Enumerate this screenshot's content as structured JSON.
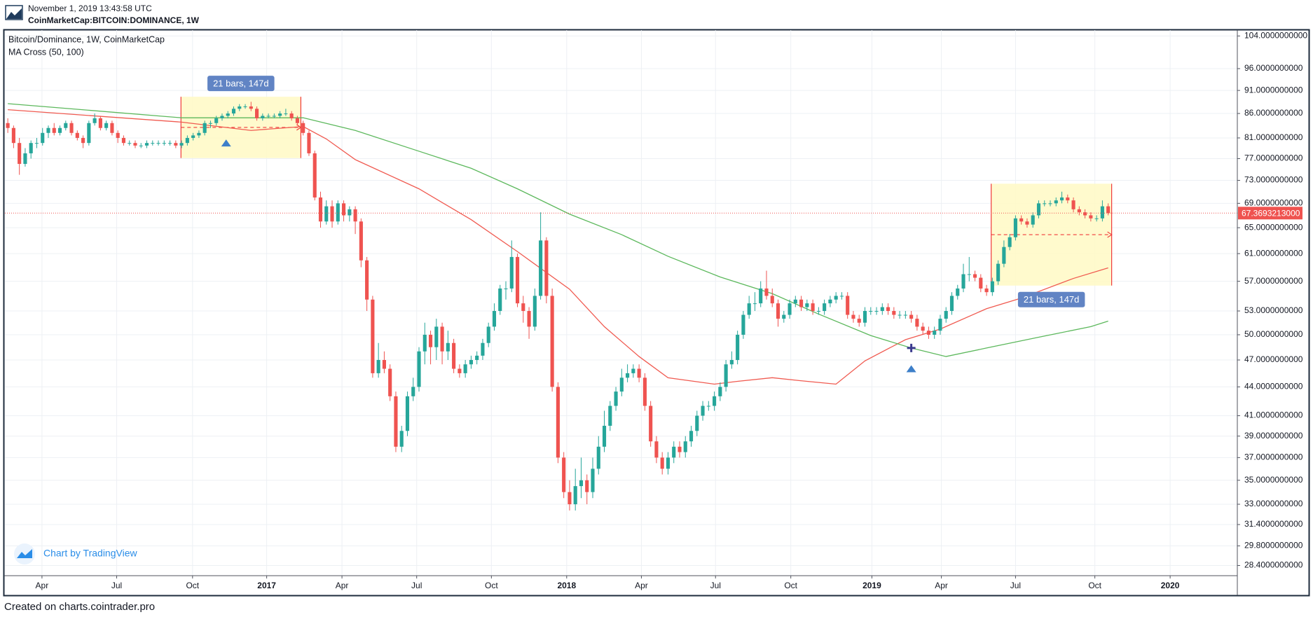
{
  "header": {
    "timestamp": "November 1, 2019 13:43:58 UTC",
    "symbol": "CoinMarketCap:BITCOIN:DOMINANCE, 1W"
  },
  "footer": "Created on charts.cointrader.pro",
  "chart_data": {
    "type": "candlestick",
    "title": "Bitcoin/Dominance, 1W, CoinMarketCap",
    "indicator": "MA Cross (50, 100)",
    "watermark": "Chart by TradingView",
    "yscale": "log",
    "grid": true,
    "up_color": "#26a69a",
    "down_color": "#ef5350",
    "xlim": [
      -0.5,
      212.3
    ],
    "ylim": [
      27.7,
      105.5
    ],
    "xticks": [
      {
        "value": 5.9,
        "label": "Apr"
      },
      {
        "value": 18.8,
        "label": "Jul"
      },
      {
        "value": 31.9,
        "label": "Oct"
      },
      {
        "value": 44.7,
        "label": "2017"
      },
      {
        "value": 57.7,
        "label": "Apr"
      },
      {
        "value": 70.6,
        "label": "Jul"
      },
      {
        "value": 83.5,
        "label": "Oct"
      },
      {
        "value": 96.5,
        "label": "2018"
      },
      {
        "value": 109.4,
        "label": "Apr"
      },
      {
        "value": 122.2,
        "label": "Jul"
      },
      {
        "value": 135.2,
        "label": "Oct"
      },
      {
        "value": 149.2,
        "label": "2019"
      },
      {
        "value": 161.2,
        "label": "Apr"
      },
      {
        "value": 174,
        "label": "Jul"
      },
      {
        "value": 187.7,
        "label": "Oct"
      },
      {
        "value": 200.7,
        "label": "2020"
      }
    ],
    "yticks": [
      {
        "value": 104,
        "label": "104.0000000000"
      },
      {
        "value": 96,
        "label": "96.0000000000"
      },
      {
        "value": 91,
        "label": "91.0000000000"
      },
      {
        "value": 86,
        "label": "86.0000000000"
      },
      {
        "value": 81,
        "label": "81.0000000000"
      },
      {
        "value": 77,
        "label": "77.0000000000"
      },
      {
        "value": 73,
        "label": "73.0000000000"
      },
      {
        "value": 69,
        "label": "69.0000000000"
      },
      {
        "value": 65,
        "label": "65.0000000000"
      },
      {
        "value": 61,
        "label": "61.0000000000"
      },
      {
        "value": 57,
        "label": "57.0000000000"
      },
      {
        "value": 53,
        "label": "53.0000000000"
      },
      {
        "value": 50,
        "label": "50.0000000000"
      },
      {
        "value": 47,
        "label": "47.0000000000"
      },
      {
        "value": 44,
        "label": "44.0000000000"
      },
      {
        "value": 41,
        "label": "41.0000000000"
      },
      {
        "value": 39,
        "label": "39.0000000000"
      },
      {
        "value": 37,
        "label": "37.0000000000"
      },
      {
        "value": 35,
        "label": "35.0000000000"
      },
      {
        "value": 33,
        "label": "33.0000000000"
      },
      {
        "value": 31.4,
        "label": "31.4000000000"
      },
      {
        "value": 29.8,
        "label": "29.8000000000"
      },
      {
        "value": 28.4,
        "label": "28.4000000000"
      }
    ],
    "ohlc": [
      [
        84,
        85,
        82,
        83
      ],
      [
        83,
        83.5,
        79,
        80
      ],
      [
        80,
        81,
        74,
        76
      ],
      [
        76,
        79,
        75.5,
        78
      ],
      [
        78,
        80.5,
        77,
        80
      ],
      [
        80,
        81,
        79,
        80
      ],
      [
        80,
        83,
        79.5,
        82
      ],
      [
        82,
        83.5,
        81,
        83
      ],
      [
        83,
        84,
        81.5,
        82
      ],
      [
        82,
        83.5,
        81.5,
        83
      ],
      [
        83,
        84.5,
        82.5,
        84
      ],
      [
        84,
        84.5,
        81.5,
        82
      ],
      [
        82,
        82.5,
        80.5,
        81
      ],
      [
        81,
        81.5,
        79,
        80
      ],
      [
        80,
        84.5,
        79.5,
        84
      ],
      [
        84,
        86,
        83.5,
        85
      ],
      [
        85,
        85.5,
        82.5,
        83
      ],
      [
        83,
        84.5,
        82.5,
        84
      ],
      [
        84,
        84.5,
        81.5,
        82
      ],
      [
        82,
        82.5,
        80,
        81
      ],
      [
        81,
        81.5,
        79.5,
        80
      ],
      [
        80,
        80.5,
        79.5,
        80
      ],
      [
        80,
        80.5,
        79,
        79.5
      ],
      [
        79.5,
        80,
        79,
        79.5
      ],
      [
        79.5,
        80.5,
        79,
        80
      ],
      [
        80,
        80.5,
        79.5,
        80
      ],
      [
        80,
        80.5,
        79.5,
        80
      ],
      [
        80,
        80.5,
        79.5,
        80
      ],
      [
        80,
        80.5,
        79.5,
        80
      ],
      [
        80,
        80.5,
        79,
        79.5
      ],
      [
        79.5,
        80.5,
        79,
        80
      ],
      [
        80,
        81.5,
        79.5,
        81
      ],
      [
        81,
        82,
        80.5,
        81.5
      ],
      [
        81.5,
        82.5,
        81,
        82
      ],
      [
        82,
        84.5,
        81.5,
        84
      ],
      [
        84,
        84.5,
        83,
        84
      ],
      [
        84,
        85.5,
        83.5,
        85
      ],
      [
        85,
        86,
        84.5,
        85.5
      ],
      [
        85.5,
        86.5,
        85,
        86
      ],
      [
        86,
        87.5,
        85.5,
        87
      ],
      [
        87,
        88,
        86.5,
        87.5
      ],
      [
        87.5,
        88,
        87,
        87.5
      ],
      [
        87.5,
        88.5,
        86.5,
        87
      ],
      [
        87,
        87.5,
        84.5,
        85
      ],
      [
        85,
        86,
        84.5,
        85.5
      ],
      [
        85.5,
        86,
        85,
        85.5
      ],
      [
        85.5,
        86,
        85,
        85.5
      ],
      [
        85.5,
        86.5,
        85,
        86
      ],
      [
        86,
        87,
        85.5,
        86
      ],
      [
        86,
        86.5,
        84.5,
        85
      ],
      [
        85,
        85.5,
        83.5,
        84
      ],
      [
        84,
        84.5,
        81.5,
        82
      ],
      [
        82,
        82.5,
        77.5,
        78
      ],
      [
        78,
        78.5,
        69.5,
        70
      ],
      [
        70,
        71,
        65,
        66
      ],
      [
        66,
        69.5,
        65.5,
        68.5
      ],
      [
        68.5,
        69.5,
        65,
        66
      ],
      [
        66,
        69.5,
        65.5,
        69
      ],
      [
        69,
        69.5,
        66,
        67
      ],
      [
        67,
        68.5,
        66,
        68
      ],
      [
        68,
        68.5,
        64,
        66
      ],
      [
        66,
        66.5,
        59,
        60
      ],
      [
        60,
        60.5,
        53,
        54.5
      ],
      [
        54.5,
        55,
        45,
        45.5
      ],
      [
        45.5,
        49,
        45,
        47
      ],
      [
        47,
        48,
        45.5,
        46
      ],
      [
        46,
        46.5,
        42.5,
        43
      ],
      [
        43,
        43.5,
        37.5,
        38
      ],
      [
        38,
        40,
        37.5,
        39.5
      ],
      [
        39.5,
        43.5,
        39,
        43
      ],
      [
        43,
        45,
        42.5,
        44
      ],
      [
        44,
        48.5,
        43.5,
        48
      ],
      [
        48,
        51.5,
        46.5,
        50
      ],
      [
        50,
        50.5,
        46.5,
        48.5
      ],
      [
        48.5,
        52,
        47,
        51
      ],
      [
        51,
        51.5,
        46.5,
        48
      ],
      [
        48,
        50.5,
        47,
        49
      ],
      [
        49,
        49.5,
        45.5,
        46
      ],
      [
        46,
        46.5,
        45,
        45.5
      ],
      [
        45.5,
        47,
        45,
        46.5
      ],
      [
        46.5,
        47.5,
        46,
        47
      ],
      [
        47,
        48,
        46.5,
        47.5
      ],
      [
        47.5,
        49.5,
        47,
        49
      ],
      [
        49,
        51.5,
        48.5,
        51
      ],
      [
        51,
        54,
        50.5,
        53
      ],
      [
        53,
        56.5,
        52.5,
        56
      ],
      [
        56,
        57,
        54.5,
        56
      ],
      [
        56,
        63,
        55.5,
        60.5
      ],
      [
        60.5,
        61,
        53.5,
        54
      ],
      [
        54,
        55,
        51.5,
        53
      ],
      [
        53,
        53.5,
        49.5,
        51
      ],
      [
        51,
        56,
        50.5,
        55
      ],
      [
        55,
        67.5,
        54.5,
        63
      ],
      [
        63,
        63.5,
        54,
        55
      ],
      [
        55,
        56,
        43.5,
        44
      ],
      [
        44,
        44.5,
        36.5,
        37
      ],
      [
        37,
        37.5,
        33.5,
        34
      ],
      [
        34,
        35,
        32.5,
        33
      ],
      [
        33,
        36,
        32.5,
        34.5
      ],
      [
        34.5,
        37,
        33.5,
        35
      ],
      [
        35,
        35.5,
        33,
        34
      ],
      [
        34,
        37,
        33.5,
        36
      ],
      [
        36,
        39,
        35.5,
        38
      ],
      [
        38,
        41.5,
        37.5,
        40
      ],
      [
        40,
        42.5,
        39.5,
        42
      ],
      [
        42,
        44,
        41.5,
        43.5
      ],
      [
        43.5,
        46,
        43,
        45
      ],
      [
        45,
        46.5,
        44.5,
        45.5
      ],
      [
        45.5,
        46.5,
        45,
        46
      ],
      [
        46,
        46.5,
        44.5,
        45
      ],
      [
        45,
        45.5,
        41.5,
        42
      ],
      [
        42,
        42.5,
        38,
        38.5
      ],
      [
        38.5,
        39,
        36.5,
        37
      ],
      [
        37,
        37.5,
        35.5,
        36
      ],
      [
        36,
        37.5,
        35.5,
        37
      ],
      [
        37,
        38.5,
        36.5,
        38
      ],
      [
        38,
        38.5,
        37,
        37.5
      ],
      [
        37.5,
        39,
        37,
        38.5
      ],
      [
        38.5,
        40,
        38,
        39.5
      ],
      [
        39.5,
        41.5,
        39,
        41
      ],
      [
        41,
        42.5,
        40.5,
        42
      ],
      [
        42,
        42.5,
        41.5,
        42
      ],
      [
        42,
        43.5,
        41.5,
        43
      ],
      [
        43,
        44.5,
        42.5,
        44
      ],
      [
        44,
        47,
        43.5,
        46.5
      ],
      [
        46.5,
        48,
        46,
        47
      ],
      [
        47,
        50.5,
        46.5,
        50
      ],
      [
        50,
        53,
        49.5,
        52.5
      ],
      [
        52.5,
        55,
        52,
        54
      ],
      [
        54,
        55.5,
        53,
        54
      ],
      [
        54,
        57,
        53.5,
        56
      ],
      [
        56,
        58.5,
        54.5,
        55
      ],
      [
        55,
        56,
        53.5,
        54
      ],
      [
        54,
        54.5,
        51,
        52
      ],
      [
        52,
        53,
        51.5,
        52.5
      ],
      [
        52.5,
        54.5,
        52,
        54
      ],
      [
        54,
        55,
        53.5,
        54.5
      ],
      [
        54.5,
        55,
        53,
        53.5
      ],
      [
        53.5,
        54.5,
        53,
        54
      ],
      [
        54,
        54.5,
        52.5,
        53
      ],
      [
        53,
        53.5,
        52.5,
        53
      ],
      [
        53,
        54.5,
        52.5,
        54
      ],
      [
        54,
        55,
        53.5,
        54.5
      ],
      [
        54.5,
        55.5,
        54,
        55
      ],
      [
        55,
        55.5,
        54.5,
        55
      ],
      [
        55,
        55.5,
        52,
        52.5
      ],
      [
        52.5,
        53,
        51.5,
        52
      ],
      [
        52,
        52.5,
        51,
        51.5
      ],
      [
        51.5,
        53.5,
        51,
        53
      ],
      [
        53,
        53.5,
        52.5,
        53
      ],
      [
        53,
        53.5,
        52.5,
        53
      ],
      [
        53,
        54,
        52.5,
        53.5
      ],
      [
        53.5,
        54,
        52.5,
        53
      ],
      [
        53,
        53.5,
        52,
        52.5
      ],
      [
        52.5,
        53,
        52,
        52.5
      ],
      [
        52.5,
        53,
        52,
        52.5
      ],
      [
        52.5,
        53,
        51.5,
        52
      ],
      [
        52,
        52.5,
        50.5,
        51
      ],
      [
        51,
        51.5,
        50,
        50.5
      ],
      [
        50.5,
        51,
        49.5,
        50
      ],
      [
        50,
        51,
        49.5,
        50.5
      ],
      [
        50.5,
        52.5,
        50,
        52
      ],
      [
        52,
        53.5,
        51.5,
        53
      ],
      [
        53,
        55.5,
        52.5,
        55
      ],
      [
        55,
        56.5,
        54.5,
        56
      ],
      [
        56,
        59.5,
        55.5,
        58
      ],
      [
        58,
        60.5,
        57,
        58
      ],
      [
        58,
        58.5,
        57,
        57.5
      ],
      [
        57.5,
        58,
        55.5,
        56
      ],
      [
        56,
        56.5,
        55,
        55.5
      ],
      [
        55.5,
        57.5,
        55,
        57
      ],
      [
        57,
        60,
        56.5,
        59.5
      ],
      [
        59.5,
        63,
        59,
        62
      ],
      [
        62,
        64,
        61.5,
        63.5
      ],
      [
        63.5,
        67,
        63,
        66.5
      ],
      [
        66.5,
        67,
        65.5,
        66
      ],
      [
        66,
        66.5,
        65,
        65.5
      ],
      [
        65.5,
        67.5,
        65,
        67
      ],
      [
        67,
        69.5,
        66.5,
        69
      ],
      [
        69,
        69.5,
        68.5,
        69
      ],
      [
        69,
        69.5,
        68.5,
        69
      ],
      [
        69,
        70,
        68.5,
        69.5
      ],
      [
        69.5,
        71,
        69,
        70
      ],
      [
        70,
        70.5,
        69,
        69.5
      ],
      [
        69.5,
        70,
        67.5,
        68
      ],
      [
        68,
        68.5,
        67,
        67.5
      ],
      [
        67.5,
        68,
        66.5,
        67
      ],
      [
        67,
        67.5,
        66,
        66.5
      ],
      [
        66.5,
        67,
        66,
        66.5
      ],
      [
        66.5,
        69.5,
        66,
        68.5
      ],
      [
        68.5,
        69,
        67,
        67.3693213
      ]
    ],
    "lines": [
      {
        "color": "#f05a50",
        "x": [
          0,
          30,
          42,
          51,
          55,
          60,
          71,
          80,
          88,
          97,
          103,
          109,
          114,
          122,
          126,
          132,
          138,
          143,
          148,
          155,
          161,
          169,
          175,
          184,
          190
        ],
        "values": [
          86.8,
          84.2,
          82.5,
          83.3,
          80.8,
          76.8,
          71.5,
          66.3,
          61.3,
          55.9,
          51.0,
          47.4,
          45.0,
          44.3,
          44.6,
          45.0,
          44.6,
          44.3,
          46.9,
          49.4,
          50.7,
          53.3,
          54.7,
          57.4,
          58.9
        ]
      },
      {
        "color": "#5cb85c",
        "x": [
          0,
          30,
          51,
          60,
          71,
          80,
          88,
          97,
          106,
          114,
          123,
          132,
          140,
          149,
          156,
          162,
          169,
          178,
          187,
          190
        ],
        "values": [
          88.1,
          85.1,
          85.1,
          82.5,
          78.4,
          75.2,
          71.5,
          67.2,
          63.9,
          60.6,
          57.6,
          55.3,
          52.6,
          49.9,
          48.4,
          47.4,
          48.4,
          49.7,
          51.0,
          51.7
        ]
      }
    ],
    "last_price": {
      "value": 67.3693213,
      "label": "67.3693213000"
    },
    "ranges": [
      {
        "label": "21 bars, 147d",
        "label_position": "top",
        "x": [
          29.9,
          50.6
        ],
        "y": [
          77.1,
          89.6
        ]
      },
      {
        "label": "21 bars, 147d",
        "label_position": "bottom",
        "x": [
          169.8,
          190.6
        ],
        "y": [
          56.4,
          72.4
        ]
      }
    ],
    "signals": [
      {
        "x": 37.7,
        "y": 80.0
      },
      {
        "x": 156,
        "y": 46.0
      }
    ],
    "cross": {
      "x": 156,
      "y": 48.4
    }
  }
}
